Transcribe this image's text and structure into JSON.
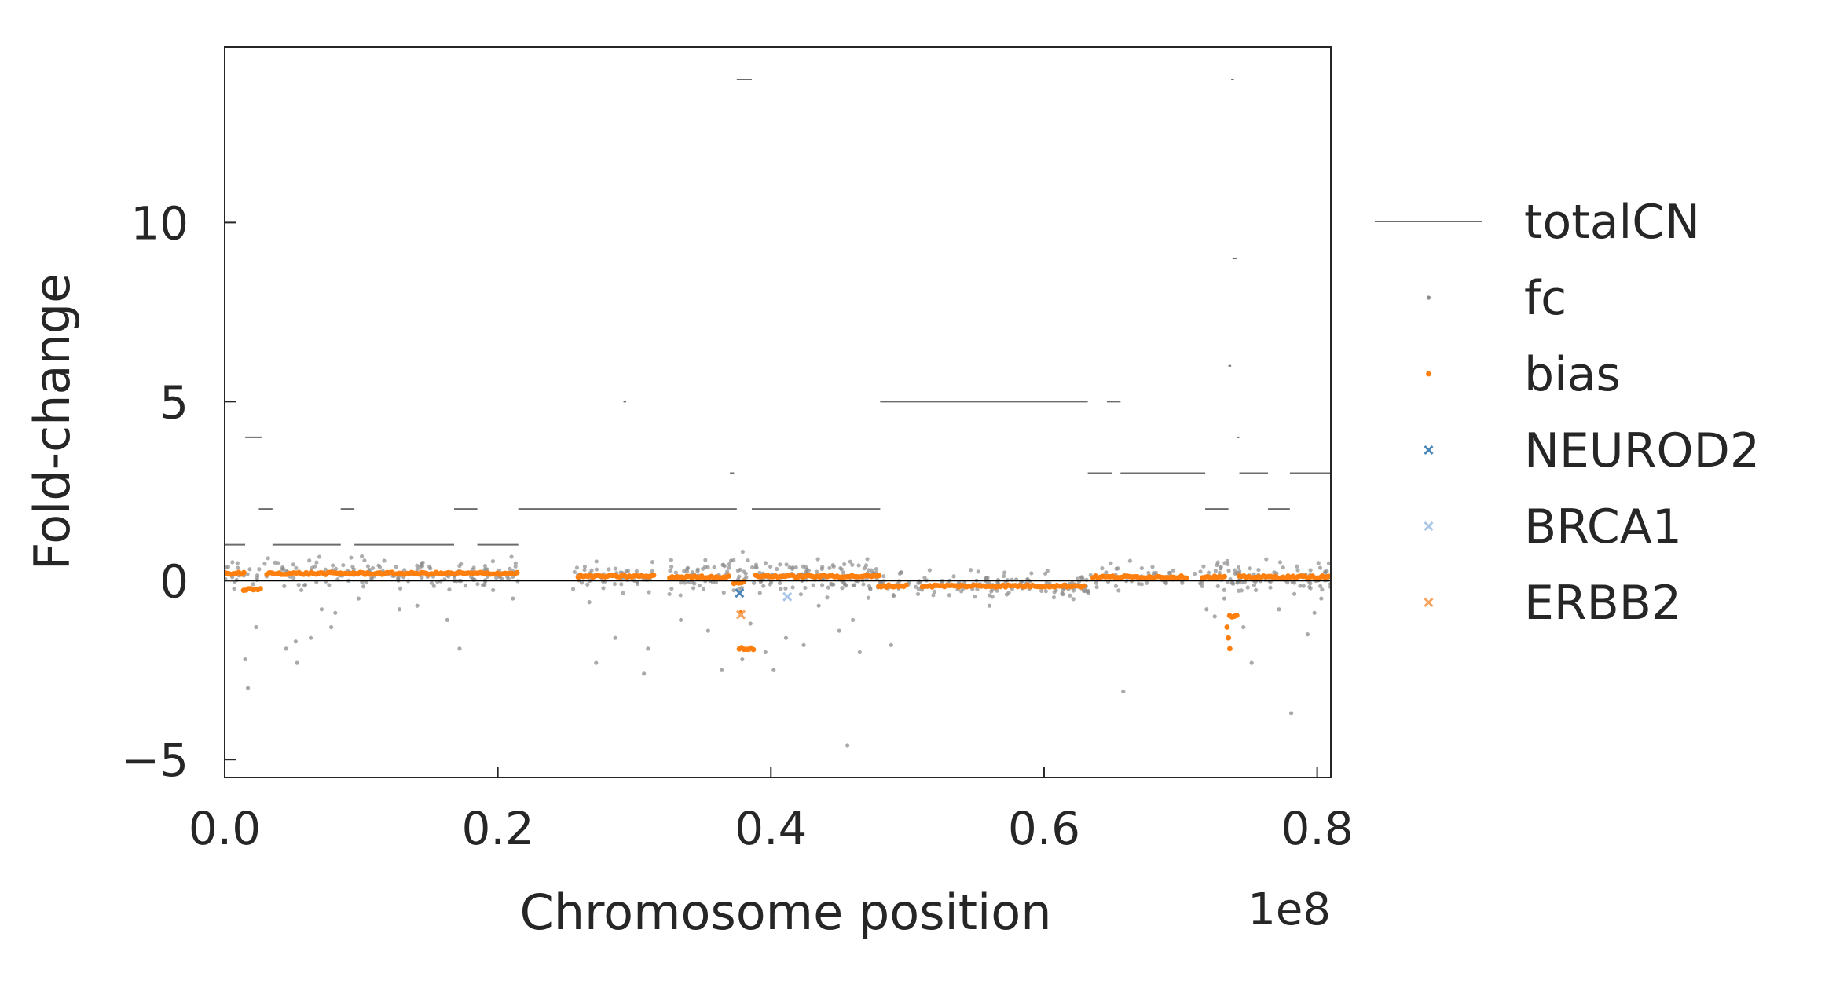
{
  "chart_data": {
    "type": "scatter",
    "title": "",
    "xlabel": "Chromosome position",
    "ylabel": "Fold-change",
    "x_offset_label": "1e8",
    "xlim": [
      0,
      81000000
    ],
    "ylim": [
      -5.5,
      14.9
    ],
    "x_ticks": [
      0,
      20000000,
      40000000,
      60000000,
      80000000
    ],
    "x_tick_labels": [
      "0.0",
      "0.2",
      "0.4",
      "0.6",
      "0.8"
    ],
    "y_ticks": [
      -5,
      0,
      5,
      10
    ],
    "y_tick_labels": [
      "−5",
      "0",
      "5",
      "10"
    ],
    "grid": false,
    "legend_position": "outside-right",
    "reference_line_y": 0,
    "colors": {
      "totalCN": "#6b6b6b",
      "fc": "#8c8c8c",
      "bias": "#ff7f0e",
      "NEUROD2": "#4a86b8",
      "BRCA1": "#a9c6e6",
      "ERBB2": "#f7a55e",
      "axes": "#262626"
    },
    "legend": [
      "totalCN",
      "fc",
      "bias",
      "NEUROD2",
      "BRCA1",
      "ERBB2"
    ],
    "totalCN_segments": [
      {
        "x0": 0,
        "x1": 1500000,
        "y": 1
      },
      {
        "x0": 1500000,
        "x1": 2700000,
        "y": 4
      },
      {
        "x0": 2500000,
        "x1": 3500000,
        "y": 2
      },
      {
        "x0": 3500000,
        "x1": 8500000,
        "y": 1
      },
      {
        "x0": 8500000,
        "x1": 9500000,
        "y": 2
      },
      {
        "x0": 9500000,
        "x1": 16800000,
        "y": 1
      },
      {
        "x0": 16800000,
        "x1": 18500000,
        "y": 2
      },
      {
        "x0": 18500000,
        "x1": 21500000,
        "y": 1
      },
      {
        "x0": 21500000,
        "x1": 37500000,
        "y": 2
      },
      {
        "x0": 29200000,
        "x1": 29400000,
        "y": 5
      },
      {
        "x0": 37000000,
        "x1": 37300000,
        "y": 3
      },
      {
        "x0": 37500000,
        "x1": 38600000,
        "y": 14
      },
      {
        "x0": 38600000,
        "x1": 48000000,
        "y": 2
      },
      {
        "x0": 48000000,
        "x1": 63200000,
        "y": 5
      },
      {
        "x0": 64600000,
        "x1": 65600000,
        "y": 5
      },
      {
        "x0": 63200000,
        "x1": 65000000,
        "y": 3
      },
      {
        "x0": 65600000,
        "x1": 71800000,
        "y": 3
      },
      {
        "x0": 71800000,
        "x1": 73500000,
        "y": 2
      },
      {
        "x0": 73500000,
        "x1": 73700000,
        "y": 6
      },
      {
        "x0": 73700000,
        "x1": 73900000,
        "y": 14
      },
      {
        "x0": 73800000,
        "x1": 74100000,
        "y": 9
      },
      {
        "x0": 74100000,
        "x1": 74300000,
        "y": 4
      },
      {
        "x0": 74300000,
        "x1": 76400000,
        "y": 3
      },
      {
        "x0": 76400000,
        "x1": 78000000,
        "y": 2
      },
      {
        "x0": 78000000,
        "x1": 81000000,
        "y": 3
      }
    ],
    "fc_outliers": [
      {
        "x": 1500000,
        "y": -2.2
      },
      {
        "x": 1700000,
        "y": -3.0
      },
      {
        "x": 2300000,
        "y": -1.3
      },
      {
        "x": 4500000,
        "y": -1.9
      },
      {
        "x": 5200000,
        "y": -1.7
      },
      {
        "x": 5300000,
        "y": -2.3
      },
      {
        "x": 6300000,
        "y": -1.6
      },
      {
        "x": 7100000,
        "y": -0.8
      },
      {
        "x": 7800000,
        "y": -1.3
      },
      {
        "x": 8100000,
        "y": -0.9
      },
      {
        "x": 9800000,
        "y": -0.5
      },
      {
        "x": 12800000,
        "y": -0.8
      },
      {
        "x": 14100000,
        "y": -0.7
      },
      {
        "x": 16300000,
        "y": -1.1
      },
      {
        "x": 17200000,
        "y": -1.9
      },
      {
        "x": 21100000,
        "y": -0.5
      },
      {
        "x": 26700000,
        "y": -0.6
      },
      {
        "x": 27200000,
        "y": -2.3
      },
      {
        "x": 28600000,
        "y": -1.6
      },
      {
        "x": 30700000,
        "y": -2.6
      },
      {
        "x": 31000000,
        "y": -1.9
      },
      {
        "x": 33400000,
        "y": -1.1
      },
      {
        "x": 35400000,
        "y": -1.4
      },
      {
        "x": 36400000,
        "y": -2.5
      },
      {
        "x": 37900000,
        "y": -2.2
      },
      {
        "x": 38500000,
        "y": -1.2
      },
      {
        "x": 39600000,
        "y": -2.0
      },
      {
        "x": 40200000,
        "y": -2.5
      },
      {
        "x": 41100000,
        "y": -1.6
      },
      {
        "x": 42400000,
        "y": -1.8
      },
      {
        "x": 43500000,
        "y": -0.7
      },
      {
        "x": 45600000,
        "y": -4.6
      },
      {
        "x": 45000000,
        "y": -1.4
      },
      {
        "x": 46000000,
        "y": -1.1
      },
      {
        "x": 46500000,
        "y": -2.0
      },
      {
        "x": 48800000,
        "y": -1.8
      },
      {
        "x": 56000000,
        "y": -0.7
      },
      {
        "x": 65800000,
        "y": -3.1
      },
      {
        "x": 71900000,
        "y": -0.8
      },
      {
        "x": 72500000,
        "y": -1.0
      },
      {
        "x": 73200000,
        "y": -0.5
      },
      {
        "x": 74600000,
        "y": -1.3
      },
      {
        "x": 75200000,
        "y": -2.3
      },
      {
        "x": 77200000,
        "y": -0.8
      },
      {
        "x": 78100000,
        "y": -3.7
      },
      {
        "x": 79300000,
        "y": -1.5
      },
      {
        "x": 79800000,
        "y": -0.9
      },
      {
        "x": 80300000,
        "y": -0.5
      }
    ],
    "fc_clusters": [
      {
        "x_start": 0,
        "x_end": 21500000,
        "center": 0.2,
        "spread": 0.45,
        "count": 170
      },
      {
        "x_start": 25500000,
        "x_end": 31500000,
        "center": 0.1,
        "spread": 0.45,
        "count": 50
      },
      {
        "x_start": 32500000,
        "x_end": 48000000,
        "center": 0.15,
        "spread": 0.55,
        "count": 190
      },
      {
        "x_start": 48000000,
        "x_end": 63500000,
        "center": -0.15,
        "spread": 0.4,
        "count": 140
      },
      {
        "x_start": 63500000,
        "x_end": 70500000,
        "center": 0.1,
        "spread": 0.4,
        "count": 45
      },
      {
        "x_start": 71000000,
        "x_end": 81000000,
        "center": 0.1,
        "spread": 0.45,
        "count": 110
      }
    ],
    "bias_segments": [
      {
        "x0": 0,
        "x1": 1500000,
        "y": 0.2
      },
      {
        "x0": 1300000,
        "x1": 2700000,
        "y": -0.25
      },
      {
        "x0": 3000000,
        "x1": 21500000,
        "y": 0.2
      },
      {
        "x0": 25800000,
        "x1": 31500000,
        "y": 0.12
      },
      {
        "x0": 32500000,
        "x1": 37000000,
        "y": 0.1
      },
      {
        "x0": 37200000,
        "x1": 38100000,
        "y": -0.05
      },
      {
        "x0": 37600000,
        "x1": 38800000,
        "y": -1.9
      },
      {
        "x0": 38800000,
        "x1": 48000000,
        "y": 0.12
      },
      {
        "x0": 47800000,
        "x1": 50000000,
        "y": -0.15
      },
      {
        "x0": 51000000,
        "x1": 63000000,
        "y": -0.15
      },
      {
        "x0": 63500000,
        "x1": 70500000,
        "y": 0.1
      },
      {
        "x0": 71500000,
        "x1": 73300000,
        "y": 0.1
      },
      {
        "x0": 73500000,
        "x1": 74200000,
        "y": -1.0
      },
      {
        "x0": 74200000,
        "x1": 81000000,
        "y": 0.1
      }
    ],
    "bias_extra": [
      {
        "x": 37800000,
        "y": -0.9
      },
      {
        "x": 73500000,
        "y": -1.6
      },
      {
        "x": 73600000,
        "y": -1.9
      },
      {
        "x": 73400000,
        "y": -1.3
      }
    ],
    "gene_points": {
      "NEUROD2": [
        {
          "x": 37700000,
          "y": -0.35
        }
      ],
      "BRCA1": [
        {
          "x": 41200000,
          "y": -0.45
        }
      ],
      "ERBB2": [
        {
          "x": 37800000,
          "y": -0.95
        }
      ]
    }
  }
}
